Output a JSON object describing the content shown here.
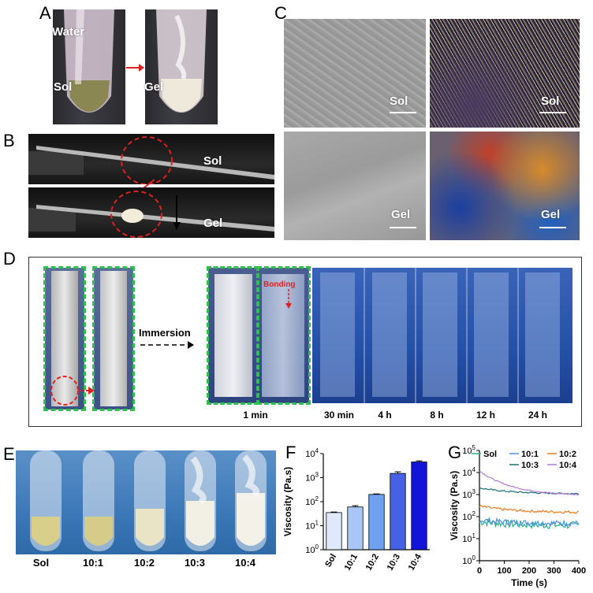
{
  "panels": {
    "a": "A",
    "b": "B",
    "c": "C",
    "d": "D",
    "e": "E",
    "f": "F",
    "g": "G"
  },
  "panelA": {
    "water": "Water",
    "sol": "Sol",
    "gel": "Gel"
  },
  "panelB": {
    "sol": "Sol",
    "gel": "Gel"
  },
  "panelC": {
    "tl": "Sol",
    "tr": "Sol",
    "bl": "Gel",
    "br": "Gel"
  },
  "panelD": {
    "immersion": "Immersion",
    "bonding": "Bonding",
    "times": [
      "1 min",
      "30 min",
      "4 h",
      "8 h",
      "12 h",
      "24 h"
    ]
  },
  "panelE": {
    "labels": [
      "Sol",
      "10:1",
      "10:2",
      "10:3",
      "10:4"
    ]
  },
  "colors": {
    "sol": "#2bb08a",
    "r10_1": "#4f8fe8",
    "r10_2": "#f07d1e",
    "r10_3": "#1d6f7a",
    "r10_4": "#b57ad3",
    "green_dash": "#2fbf4f",
    "red": "#e02020"
  },
  "chart_data": [
    {
      "panel": "F",
      "type": "bar",
      "categories": [
        "Sol",
        "10:1",
        "10:2",
        "10:3",
        "10:4"
      ],
      "values": [
        35,
        60,
        200,
        1500,
        4500
      ],
      "errors": [
        2,
        8,
        10,
        250,
        500
      ],
      "bar_colors": [
        "#dfe9fb",
        "#a9c7f6",
        "#6fa1ee",
        "#4660e6",
        "#1414d8"
      ],
      "ylabel": "Viscosity (Pa.s)",
      "yscale": "log",
      "ylim": [
        1,
        10000
      ],
      "yticks": [
        "10^0",
        "10^1",
        "10^2",
        "10^3",
        "10^4"
      ]
    },
    {
      "panel": "G",
      "type": "line",
      "xlabel": "Time (s)",
      "ylabel": "Viscosity (Pa.s)",
      "xlim": [
        0,
        400
      ],
      "ylim": [
        1,
        100000
      ],
      "yscale": "log",
      "xticks": [
        "0",
        "100",
        "200",
        "300",
        "400"
      ],
      "yticks": [
        "10^0",
        "10^1",
        "10^2",
        "10^3",
        "10^4",
        "10^5"
      ],
      "legend": "top",
      "series": [
        {
          "name": "Sol",
          "start": 60,
          "end": 40,
          "noise": 0.35,
          "color": "#2bb08a"
        },
        {
          "name": "10:1",
          "start": 70,
          "end": 50,
          "noise": 0.25,
          "color": "#4f8fe8"
        },
        {
          "name": "10:2",
          "start": 300,
          "end": 160,
          "noise": 0.12,
          "color": "#f07d1e"
        },
        {
          "name": "10:3",
          "start": 2000,
          "end": 1100,
          "noise": 0.07,
          "color": "#1d6f7a"
        },
        {
          "name": "10:4",
          "start": 12000,
          "end": 1000,
          "noise": 0.05,
          "color": "#b57ad3"
        }
      ]
    }
  ]
}
